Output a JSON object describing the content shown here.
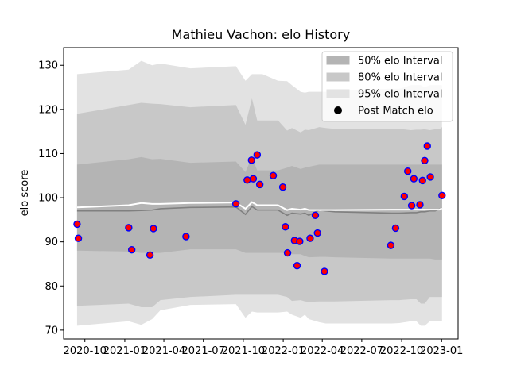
{
  "chart_data": {
    "type": "scatter",
    "title": "Mathieu Vachon: elo History",
    "xlabel": "",
    "ylabel": "elo score",
    "xlim": [
      "2020-08-13",
      "2023-02-08"
    ],
    "ylim": [
      68,
      134
    ],
    "x_ticks": [
      "2020-10",
      "2021-01",
      "2021-04",
      "2021-07",
      "2021-10",
      "2022-01",
      "2022-04",
      "2022-07",
      "2022-10",
      "2023-01"
    ],
    "x_tick_dates": [
      "2020-10-01",
      "2021-01-01",
      "2021-04-01",
      "2021-07-01",
      "2021-10-01",
      "2022-01-01",
      "2022-04-01",
      "2022-07-01",
      "2022-10-01",
      "2023-01-01"
    ],
    "y_ticks": [
      70,
      80,
      90,
      100,
      110,
      120,
      130
    ],
    "legend": {
      "position": "top-right",
      "entries": [
        "50% elo Interval",
        "80% elo Interval",
        "95% elo Interval",
        "Post Match elo"
      ]
    },
    "colors": {
      "band50": "#b4b4b4",
      "band80": "#c8c8c8",
      "band95": "#e2e2e2",
      "mean_line": "#808080",
      "expected_line": "#ffffff",
      "point_fill": "#ff0000",
      "point_edge": "#0000ff"
    },
    "band_dates": [
      "2020-09-13",
      "2021-01-10",
      "2021-02-08",
      "2021-03-05",
      "2021-03-24",
      "2021-06-01",
      "2021-09-14",
      "2021-10-06",
      "2021-10-21",
      "2021-11-02",
      "2021-11-14",
      "2021-12-20",
      "2022-01-10",
      "2022-01-21",
      "2022-02-10",
      "2022-02-20",
      "2022-03-01",
      "2022-03-25",
      "2022-04-09",
      "2022-04-30",
      "2022-09-08",
      "2022-09-26",
      "2022-10-22",
      "2022-11-04",
      "2022-11-14",
      "2022-11-23",
      "2022-12-05",
      "2022-12-17",
      "2022-12-27",
      "2023-01-02"
    ],
    "band95_upper": [
      128,
      129,
      131,
      130,
      130.4,
      129.3,
      129.8,
      126.5,
      128,
      128,
      128,
      126.5,
      126.4,
      125.5,
      124,
      123.8,
      124,
      124,
      124,
      124.3,
      124.7,
      124.7,
      125.5,
      125.5,
      125.5,
      125,
      125.5,
      125.5,
      125.5,
      125.5
    ],
    "band80_upper": [
      119,
      121,
      121.5,
      121.3,
      121.2,
      120.5,
      121,
      116.5,
      122.5,
      117.5,
      117.5,
      117.5,
      115.2,
      115.8,
      114.8,
      115.4,
      115.3,
      116,
      115.8,
      115.6,
      115.6,
      115.6,
      115.3,
      115.4,
      115.4,
      115.5,
      115.3,
      115.5,
      115.5,
      116
    ],
    "band50_upper": [
      107.5,
      108.7,
      109.2,
      108.7,
      108.8,
      107.9,
      108.2,
      105.8,
      109.2,
      106.2,
      106.2,
      106.2,
      106.8,
      107.2,
      106.5,
      106.8,
      107,
      107.5,
      107.5,
      107.5,
      107.5,
      107.5,
      107.5,
      107.5,
      107.5,
      107.5,
      107.5,
      107.5,
      107.5,
      107.5
    ],
    "band50_lower": [
      88,
      87.8,
      87.5,
      87.5,
      87.5,
      88.3,
      88.3,
      87.5,
      87.5,
      87.5,
      87.5,
      87.5,
      87.5,
      87.2,
      87.2,
      86.8,
      86.5,
      86.6,
      86.6,
      86.5,
      86.2,
      86.2,
      86.2,
      86.2,
      86.2,
      86.2,
      86.2,
      86,
      86,
      86
    ],
    "band80_lower": [
      75.5,
      76,
      75.2,
      75.2,
      76.8,
      77.5,
      78,
      78,
      78,
      78,
      78,
      78,
      77.5,
      76.6,
      76.8,
      76.5,
      76.4,
      76.5,
      76.5,
      76.5,
      76.8,
      76.8,
      77,
      77,
      76,
      76,
      77.5,
      77.5,
      77.5,
      77.5
    ],
    "band95_lower": [
      71,
      72,
      71.2,
      72.5,
      74.5,
      75.7,
      75.9,
      72.8,
      74.2,
      74,
      74,
      74,
      74.2,
      73.5,
      72.8,
      73.5,
      72.5,
      71.8,
      71.5,
      71.5,
      71.5,
      71.6,
      72,
      72,
      71,
      71,
      72,
      72,
      72,
      72
    ],
    "mean_line": [
      97,
      97,
      97.1,
      97.2,
      97.5,
      97.8,
      97.9,
      96.2,
      98,
      97.2,
      97.2,
      97.2,
      96,
      96.5,
      96.3,
      96.5,
      96,
      97.2,
      97,
      96.8,
      96.5,
      96.5,
      96.6,
      96.6,
      96.8,
      96.8,
      97,
      97,
      97.4,
      97.7
    ],
    "expected_line": [
      97.8,
      98.3,
      98.8,
      98.6,
      98.6,
      98.8,
      98.9,
      97.5,
      99,
      98.3,
      98.3,
      98.3,
      97.2,
      97.5,
      97.3,
      97.5,
      97.2,
      97.2,
      97.2,
      97.2,
      97.3,
      97.3,
      97.3,
      97.3,
      97.3,
      97.3,
      97.3,
      97.3,
      97.3,
      97.6
    ],
    "points": [
      {
        "date": "2020-09-13",
        "elo": 94
      },
      {
        "date": "2020-09-16",
        "elo": 90.8
      },
      {
        "date": "2021-01-10",
        "elo": 93.2
      },
      {
        "date": "2021-01-17",
        "elo": 88.2
      },
      {
        "date": "2021-02-28",
        "elo": 87
      },
      {
        "date": "2021-03-08",
        "elo": 93
      },
      {
        "date": "2021-05-22",
        "elo": 91.2
      },
      {
        "date": "2021-09-14",
        "elo": 98.6
      },
      {
        "date": "2021-10-10",
        "elo": 104
      },
      {
        "date": "2021-10-20",
        "elo": 108.5
      },
      {
        "date": "2021-10-24",
        "elo": 104.3
      },
      {
        "date": "2021-11-02",
        "elo": 109.7
      },
      {
        "date": "2021-11-08",
        "elo": 103
      },
      {
        "date": "2021-12-09",
        "elo": 105
      },
      {
        "date": "2021-12-31",
        "elo": 102.4
      },
      {
        "date": "2022-01-06",
        "elo": 93.4
      },
      {
        "date": "2022-01-11",
        "elo": 87.5
      },
      {
        "date": "2022-01-27",
        "elo": 90.3
      },
      {
        "date": "2022-02-02",
        "elo": 84.6
      },
      {
        "date": "2022-02-08",
        "elo": 90.1
      },
      {
        "date": "2022-03-04",
        "elo": 90.8
      },
      {
        "date": "2022-03-16",
        "elo": 96
      },
      {
        "date": "2022-03-21",
        "elo": 92
      },
      {
        "date": "2022-04-06",
        "elo": 83.3
      },
      {
        "date": "2022-09-06",
        "elo": 89.2
      },
      {
        "date": "2022-09-17",
        "elo": 93.1
      },
      {
        "date": "2022-10-07",
        "elo": 100.3
      },
      {
        "date": "2022-10-15",
        "elo": 106
      },
      {
        "date": "2022-10-24",
        "elo": 98.2
      },
      {
        "date": "2022-10-29",
        "elo": 104.3
      },
      {
        "date": "2022-11-12",
        "elo": 98.4
      },
      {
        "date": "2022-11-18",
        "elo": 103.9
      },
      {
        "date": "2022-11-23",
        "elo": 108.4
      },
      {
        "date": "2022-11-29",
        "elo": 111.7
      },
      {
        "date": "2022-12-06",
        "elo": 104.7
      },
      {
        "date": "2023-01-02",
        "elo": 100.5
      }
    ]
  }
}
